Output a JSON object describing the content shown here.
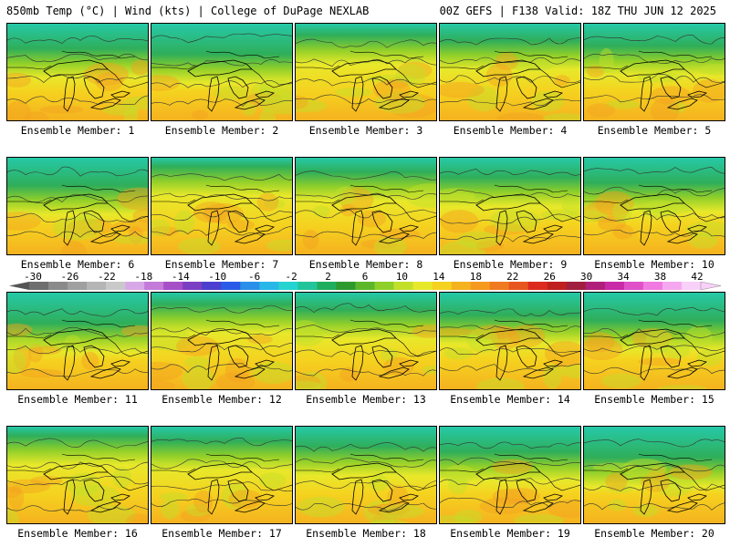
{
  "header": {
    "left": "850mb Temp (°C) | Wind (kts) | College of DuPage NEXLAB",
    "right": "00Z GEFS | F138 Valid: 18Z THU JUN 12 2025"
  },
  "colorbar": {
    "labels": [
      "-30",
      "-26",
      "-22",
      "-18",
      "-14",
      "-10",
      "-6",
      "-2",
      "2",
      "6",
      "10",
      "14",
      "18",
      "22",
      "26",
      "30",
      "34",
      "38",
      "42"
    ],
    "colors": [
      "#6e6e6e",
      "#8a8a8a",
      "#a0a0a0",
      "#b5b5b5",
      "#c9c9c9",
      "#d7a8e8",
      "#c37ad8",
      "#a64fc7",
      "#7b3fc3",
      "#4b3fcf",
      "#2a5be8",
      "#2a8fe8",
      "#27b8e8",
      "#25d3d0",
      "#22c49a",
      "#1fae5e",
      "#2e9a2e",
      "#5cb82a",
      "#8fcf2a",
      "#c2e02a",
      "#e8e82a",
      "#f5d21f",
      "#f5b21f",
      "#f59a1f",
      "#f07a1f",
      "#e8561f",
      "#dc2a1f",
      "#c01f1f",
      "#a01f3f",
      "#b01f7a",
      "#c82aa8",
      "#e050c8",
      "#f07ae0",
      "#f5a8f0",
      "#f8d0f8"
    ]
  },
  "panels": [
    {
      "label": "Ensemble Member: 1"
    },
    {
      "label": "Ensemble Member: 2"
    },
    {
      "label": "Ensemble Member: 3"
    },
    {
      "label": "Ensemble Member: 4"
    },
    {
      "label": "Ensemble Member: 5"
    },
    {
      "label": "Ensemble Member: 6"
    },
    {
      "label": "Ensemble Member: 7"
    },
    {
      "label": "Ensemble Member: 8"
    },
    {
      "label": "Ensemble Member: 9"
    },
    {
      "label": "Ensemble Member: 10"
    },
    {
      "label": "Ensemble Member: 11"
    },
    {
      "label": "Ensemble Member: 12"
    },
    {
      "label": "Ensemble Member: 13"
    },
    {
      "label": "Ensemble Member: 14"
    },
    {
      "label": "Ensemble Member: 15"
    },
    {
      "label": "Ensemble Member: 16"
    },
    {
      "label": "Ensemble Member: 17"
    },
    {
      "label": "Ensemble Member: 18"
    },
    {
      "label": "Ensemble Member: 19"
    },
    {
      "label": "Ensemble Member: 20"
    }
  ]
}
